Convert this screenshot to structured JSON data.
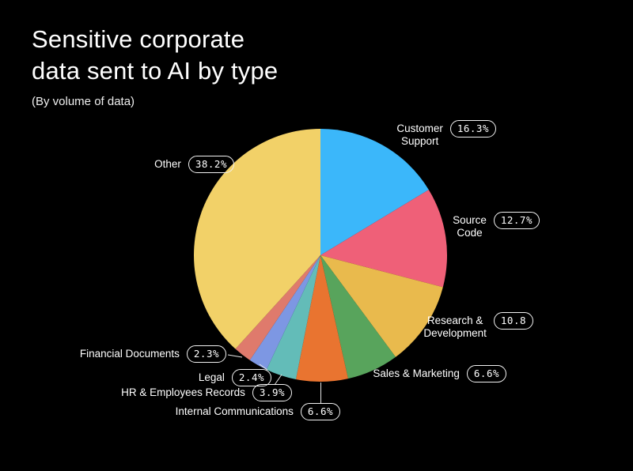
{
  "header": {
    "title": "Sensitive corporate\ndata sent to AI by type",
    "subtitle": "(By volume of data)"
  },
  "chart_data": {
    "type": "pie",
    "title": "Sensitive corporate data sent to AI by type",
    "subtitle": "(By volume of data)",
    "start_angle": "12 o'clock",
    "direction": "clockwise",
    "legend": "none",
    "labels_outside_with_pill_badges": true,
    "background_color": "#000000",
    "slices": [
      {
        "key": "customer_support",
        "label": "Customer\nSupport",
        "value": 16.3,
        "value_label": "16.3%",
        "color": "#3BB7FA"
      },
      {
        "key": "source_code",
        "label": "Source\nCode",
        "value": 12.7,
        "value_label": "12.7%",
        "color": "#EF6078"
      },
      {
        "key": "research_development",
        "label": "Research &\nDevelopment",
        "value": 10.8,
        "value_label": "10.8",
        "color": "#E9BA4D"
      },
      {
        "key": "sales_marketing",
        "label": "Sales & Marketing",
        "value": 6.6,
        "value_label": "6.6%",
        "color": "#58A45C"
      },
      {
        "key": "internal_communications",
        "label": "Internal Communications",
        "value": 6.6,
        "value_label": "6.6%",
        "color": "#E97430"
      },
      {
        "key": "hr_employees_records",
        "label": "HR & Employees Records",
        "value": 3.9,
        "value_label": "3.9%",
        "color": "#63BCB8"
      },
      {
        "key": "legal",
        "label": "Legal",
        "value": 2.4,
        "value_label": "2.4%",
        "color": "#7D97E3"
      },
      {
        "key": "financial_documents",
        "label": "Financial Documents",
        "value": 2.3,
        "value_label": "2.3%",
        "color": "#DF7A6C"
      },
      {
        "key": "other",
        "label": "Other",
        "value": 38.2,
        "value_label": "38.2%",
        "color": "#F2D168"
      }
    ]
  }
}
